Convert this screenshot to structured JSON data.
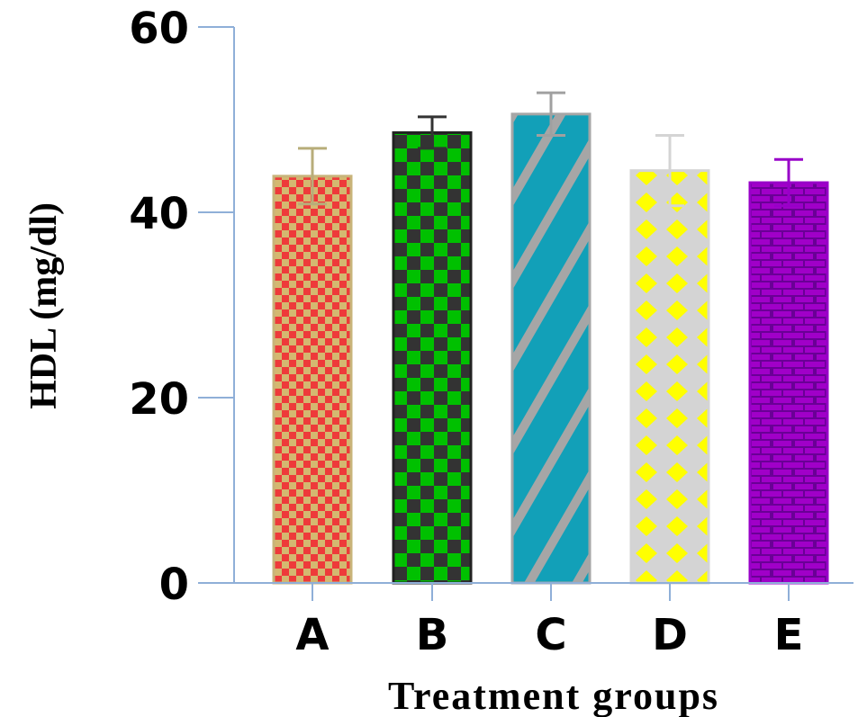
{
  "chart_data": {
    "type": "bar",
    "title": "",
    "xlabel": "Treatment groups",
    "ylabel": "HDL (mg/dl)",
    "categories": [
      "A",
      "B",
      "C",
      "D",
      "E"
    ],
    "values": [
      43.9,
      48.6,
      50.6,
      44.5,
      43.2
    ],
    "errors": [
      3.0,
      1.7,
      2.3,
      3.8,
      2.5
    ],
    "ylim": [
      0,
      60
    ],
    "yticks": [
      "0",
      "20",
      "40",
      "60"
    ],
    "grid": false,
    "legend": "none",
    "colors": {
      "axis": "#8fafd8",
      "bars": [
        {
          "fill": "#d4b870",
          "pattern": "checker",
          "pattern_color": "#ee3a3a",
          "border": "#c8b47a",
          "error": "#b8ad7a"
        },
        {
          "fill": "#00c000",
          "pattern": "checker",
          "pattern_color": "#333333",
          "border": "#222222",
          "error": "#333333"
        },
        {
          "fill": "#12a0b8",
          "pattern": "diagonal-stripes",
          "pattern_color": "#a6a6a6",
          "border": "#a6a6a6",
          "error": "#a0a0a0"
        },
        {
          "fill": "#ffff00",
          "pattern": "diamond-lattice",
          "pattern_color": "#d4d4d4",
          "border": "#d4d4d4",
          "error": "#d4d4d4"
        },
        {
          "fill": "#a000c8",
          "pattern": "bricks",
          "pattern_color": "#6a0096",
          "border": "#9800c8",
          "error": "#9800c8"
        }
      ]
    }
  }
}
